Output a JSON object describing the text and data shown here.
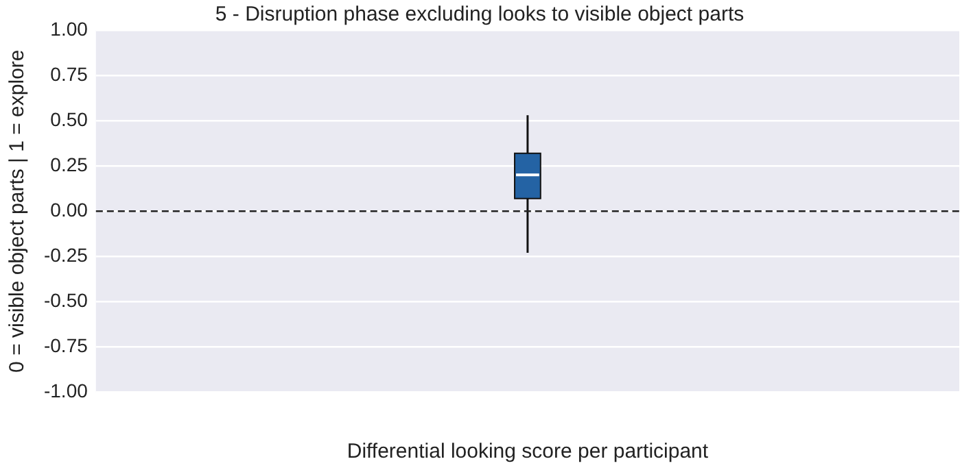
{
  "chart_data": {
    "type": "box",
    "title": "5 - Disruption phase excluding looks to visible object parts",
    "xlabel": "Differential looking score per participant",
    "ylabel": "0 = visible object parts | 1 = explore",
    "categories": [
      null
    ],
    "series": [
      {
        "color": "#2463a4",
        "boxes": [
          {
            "low": -0.23,
            "q1": 0.07,
            "median": 0.2,
            "q3": 0.32,
            "high": 0.53
          }
        ]
      }
    ],
    "ylim": [
      -1,
      1
    ],
    "yticks": [
      {
        "value": -1,
        "label": "-1.00"
      },
      {
        "value": -0.75,
        "label": "-0.75"
      },
      {
        "value": -0.5,
        "label": "-0.50"
      },
      {
        "value": -0.25,
        "label": "-0.25"
      },
      {
        "value": 0,
        "label": "0.00"
      },
      {
        "value": 0.25,
        "label": "0.25"
      },
      {
        "value": 0.5,
        "label": "0.50"
      },
      {
        "value": 0.75,
        "label": "0.75"
      },
      {
        "value": 1,
        "label": "1.00"
      }
    ],
    "ref_lines": [
      {
        "axis": "y",
        "value": 0,
        "label": null,
        "color": "#222222",
        "line_style": "dashed"
      }
    ],
    "grid": "y",
    "legend": false
  }
}
